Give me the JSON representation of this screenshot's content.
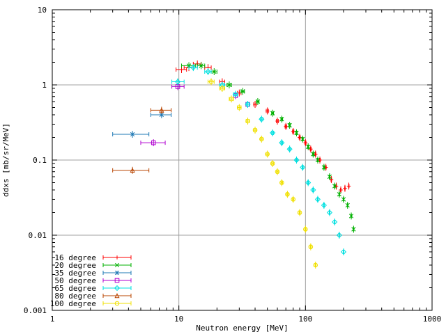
{
  "chart_data": {
    "type": "scatter",
    "xlabel": "Neutron energy [MeV]",
    "ylabel": "ddxs [mb/sr/MeV]",
    "xscale": "log",
    "yscale": "log",
    "xlim": [
      1,
      1000
    ],
    "ylim": [
      0.001,
      10
    ],
    "grid": true,
    "legend_position": "bottom-left",
    "x_tick_labels": [
      "1",
      "10",
      "100",
      "1000"
    ],
    "y_tick_labels": [
      "0.001",
      "0.01",
      "0.1",
      "1",
      "10"
    ],
    "series": [
      {
        "name": "16 degree",
        "color": "#ff0000",
        "marker": "plus",
        "points": [
          {
            "x": 10.5,
            "y": 1.6,
            "xlo": 9.5,
            "xhi": 11.5
          },
          {
            "x": 12,
            "y": 1.7,
            "xlo": 11,
            "xhi": 13
          },
          {
            "x": 14,
            "y": 1.9,
            "xlo": 13,
            "xhi": 15
          },
          {
            "x": 17,
            "y": 1.7,
            "xlo": 16,
            "xhi": 18
          },
          {
            "x": 22,
            "y": 1.1,
            "xlo": 21,
            "xhi": 23
          },
          {
            "x": 30,
            "y": 0.78,
            "xlo": 29,
            "xhi": 31
          },
          {
            "x": 40,
            "y": 0.55,
            "xlo": 39,
            "xhi": 41
          },
          {
            "x": 50,
            "y": 0.45,
            "xlo": 49,
            "xhi": 51
          },
          {
            "x": 60,
            "y": 0.33,
            "xlo": 59,
            "xhi": 61
          },
          {
            "x": 70,
            "y": 0.28,
            "xlo": 69,
            "xhi": 71
          },
          {
            "x": 80,
            "y": 0.24,
            "xlo": 79,
            "xhi": 81
          },
          {
            "x": 90,
            "y": 0.2,
            "xlo": 89,
            "xhi": 91
          },
          {
            "x": 100,
            "y": 0.17,
            "xlo": 99,
            "xhi": 101
          },
          {
            "x": 110,
            "y": 0.14,
            "xlo": 109,
            "xhi": 111
          },
          {
            "x": 120,
            "y": 0.12,
            "xlo": 119,
            "xhi": 121
          },
          {
            "x": 130,
            "y": 0.1,
            "xlo": 129,
            "xhi": 131
          },
          {
            "x": 145,
            "y": 0.08,
            "xlo": 144,
            "xhi": 146
          },
          {
            "x": 160,
            "y": 0.055,
            "xlo": 159,
            "xhi": 161
          },
          {
            "x": 175,
            "y": 0.045,
            "xlo": 174,
            "xhi": 176
          },
          {
            "x": 190,
            "y": 0.04,
            "xlo": 189,
            "xhi": 191
          },
          {
            "x": 205,
            "y": 0.042,
            "xlo": 204,
            "xhi": 206
          },
          {
            "x": 220,
            "y": 0.045,
            "xlo": 219,
            "xhi": 221
          }
        ]
      },
      {
        "name": "20 degree",
        "color": "#00b000",
        "marker": "cross",
        "points": [
          {
            "x": 12,
            "y": 1.8,
            "xlo": 10.5,
            "xhi": 13.5
          },
          {
            "x": 15,
            "y": 1.8,
            "xlo": 14,
            "xhi": 16
          },
          {
            "x": 19,
            "y": 1.5,
            "xlo": 18,
            "xhi": 20
          },
          {
            "x": 25,
            "y": 1.0,
            "xlo": 24,
            "xhi": 26
          },
          {
            "x": 32,
            "y": 0.82,
            "xlo": 31,
            "xhi": 33
          },
          {
            "x": 42,
            "y": 0.6,
            "xlo": 41,
            "xhi": 43
          },
          {
            "x": 55,
            "y": 0.42,
            "xlo": 54,
            "xhi": 56
          },
          {
            "x": 65,
            "y": 0.35,
            "xlo": 64,
            "xhi": 66
          },
          {
            "x": 75,
            "y": 0.29,
            "xlo": 74,
            "xhi": 76
          },
          {
            "x": 85,
            "y": 0.23,
            "xlo": 84,
            "xhi": 86
          },
          {
            "x": 95,
            "y": 0.19,
            "xlo": 94,
            "xhi": 96
          },
          {
            "x": 105,
            "y": 0.15,
            "xlo": 104,
            "xhi": 106
          },
          {
            "x": 115,
            "y": 0.12,
            "xlo": 114,
            "xhi": 116
          },
          {
            "x": 125,
            "y": 0.1,
            "xlo": 124,
            "xhi": 126
          },
          {
            "x": 140,
            "y": 0.08,
            "xlo": 139,
            "xhi": 141
          },
          {
            "x": 155,
            "y": 0.06,
            "xlo": 154,
            "xhi": 156
          },
          {
            "x": 170,
            "y": 0.045,
            "xlo": 169,
            "xhi": 171
          },
          {
            "x": 185,
            "y": 0.035,
            "xlo": 184,
            "xhi": 186
          },
          {
            "x": 200,
            "y": 0.03,
            "xlo": 199,
            "xhi": 201
          },
          {
            "x": 215,
            "y": 0.025,
            "xlo": 214,
            "xhi": 216
          },
          {
            "x": 230,
            "y": 0.018,
            "xlo": 229,
            "xhi": 231
          },
          {
            "x": 240,
            "y": 0.012,
            "xlo": 239,
            "xhi": 241
          }
        ]
      },
      {
        "name": "35 degree",
        "color": "#1e78b4",
        "marker": "star",
        "points": [
          {
            "x": 4.3,
            "y": 0.22,
            "xlo": 3.0,
            "xhi": 5.8
          },
          {
            "x": 7.3,
            "y": 0.4,
            "xlo": 6.0,
            "xhi": 8.7
          }
        ]
      },
      {
        "name": "50 degree",
        "color": "#b000d0",
        "marker": "square",
        "points": [
          {
            "x": 6.3,
            "y": 0.17,
            "xlo": 5.0,
            "xhi": 7.8
          },
          {
            "x": 9.8,
            "y": 0.95,
            "xlo": 8.8,
            "xhi": 11.0
          },
          {
            "x": 28,
            "y": 0.72,
            "xlo": 27,
            "xhi": 29
          },
          {
            "x": 35,
            "y": 0.55,
            "xlo": 34,
            "xhi": 36
          }
        ]
      },
      {
        "name": "65 degree",
        "color": "#00e0e0",
        "marker": "diamond",
        "points": [
          {
            "x": 9.8,
            "y": 1.1,
            "xlo": 8.8,
            "xhi": 11.0
          },
          {
            "x": 13,
            "y": 1.7,
            "xlo": 12,
            "xhi": 14
          },
          {
            "x": 17,
            "y": 1.5,
            "xlo": 16,
            "xhi": 18
          },
          {
            "x": 22,
            "y": 1.0,
            "xlo": 21,
            "xhi": 23
          },
          {
            "x": 28,
            "y": 0.75,
            "xlo": 27,
            "xhi": 29
          },
          {
            "x": 35,
            "y": 0.55,
            "xlo": 34,
            "xhi": 36
          },
          {
            "x": 45,
            "y": 0.35,
            "xlo": 44,
            "xhi": 46
          },
          {
            "x": 55,
            "y": 0.23,
            "xlo": 54,
            "xhi": 56
          },
          {
            "x": 65,
            "y": 0.17,
            "xlo": 64,
            "xhi": 66
          },
          {
            "x": 75,
            "y": 0.14,
            "xlo": 74,
            "xhi": 76
          },
          {
            "x": 85,
            "y": 0.1,
            "xlo": 84,
            "xhi": 86
          },
          {
            "x": 95,
            "y": 0.08,
            "xlo": 94,
            "xhi": 96
          },
          {
            "x": 105,
            "y": 0.05,
            "xlo": 104,
            "xhi": 106
          },
          {
            "x": 115,
            "y": 0.04,
            "xlo": 114,
            "xhi": 116
          },
          {
            "x": 125,
            "y": 0.03,
            "xlo": 124,
            "xhi": 126
          },
          {
            "x": 140,
            "y": 0.025,
            "xlo": 139,
            "xhi": 141
          },
          {
            "x": 155,
            "y": 0.02,
            "xlo": 154,
            "xhi": 156
          },
          {
            "x": 170,
            "y": 0.015,
            "xlo": 169,
            "xhi": 171
          },
          {
            "x": 185,
            "y": 0.01,
            "xlo": 184,
            "xhi": 186
          },
          {
            "x": 200,
            "y": 0.006,
            "xlo": 199,
            "xhi": 201
          }
        ]
      },
      {
        "name": "80 degree",
        "color": "#b84400",
        "marker": "triangle",
        "points": [
          {
            "x": 4.3,
            "y": 0.073,
            "xlo": 3.0,
            "xhi": 5.8
          },
          {
            "x": 7.3,
            "y": 0.46,
            "xlo": 6.0,
            "xhi": 8.7
          }
        ]
      },
      {
        "name": "100 degree",
        "color": "#f0e000",
        "marker": "circle",
        "points": [
          {
            "x": 18,
            "y": 1.1,
            "xlo": 17,
            "xhi": 19
          },
          {
            "x": 22,
            "y": 0.9,
            "xlo": 21,
            "xhi": 23
          },
          {
            "x": 26,
            "y": 0.65,
            "xlo": 25,
            "xhi": 27
          },
          {
            "x": 30,
            "y": 0.5,
            "xlo": 29,
            "xhi": 31
          },
          {
            "x": 35,
            "y": 0.33,
            "xlo": 34,
            "xhi": 36
          },
          {
            "x": 40,
            "y": 0.25,
            "xlo": 39,
            "xhi": 41
          },
          {
            "x": 45,
            "y": 0.19,
            "xlo": 44,
            "xhi": 46
          },
          {
            "x": 50,
            "y": 0.12,
            "xlo": 49,
            "xhi": 51
          },
          {
            "x": 55,
            "y": 0.09,
            "xlo": 54,
            "xhi": 56
          },
          {
            "x": 60,
            "y": 0.07,
            "xlo": 59,
            "xhi": 61
          },
          {
            "x": 65,
            "y": 0.05,
            "xlo": 64,
            "xhi": 66
          },
          {
            "x": 72,
            "y": 0.035,
            "xlo": 71,
            "xhi": 73
          },
          {
            "x": 80,
            "y": 0.03,
            "xlo": 79,
            "xhi": 81
          },
          {
            "x": 90,
            "y": 0.02,
            "xlo": 89,
            "xhi": 91
          },
          {
            "x": 100,
            "y": 0.012,
            "xlo": 99,
            "xhi": 101
          },
          {
            "x": 110,
            "y": 0.007,
            "xlo": 109,
            "xhi": 111
          },
          {
            "x": 120,
            "y": 0.004,
            "xlo": 119,
            "xhi": 121
          }
        ]
      }
    ]
  }
}
